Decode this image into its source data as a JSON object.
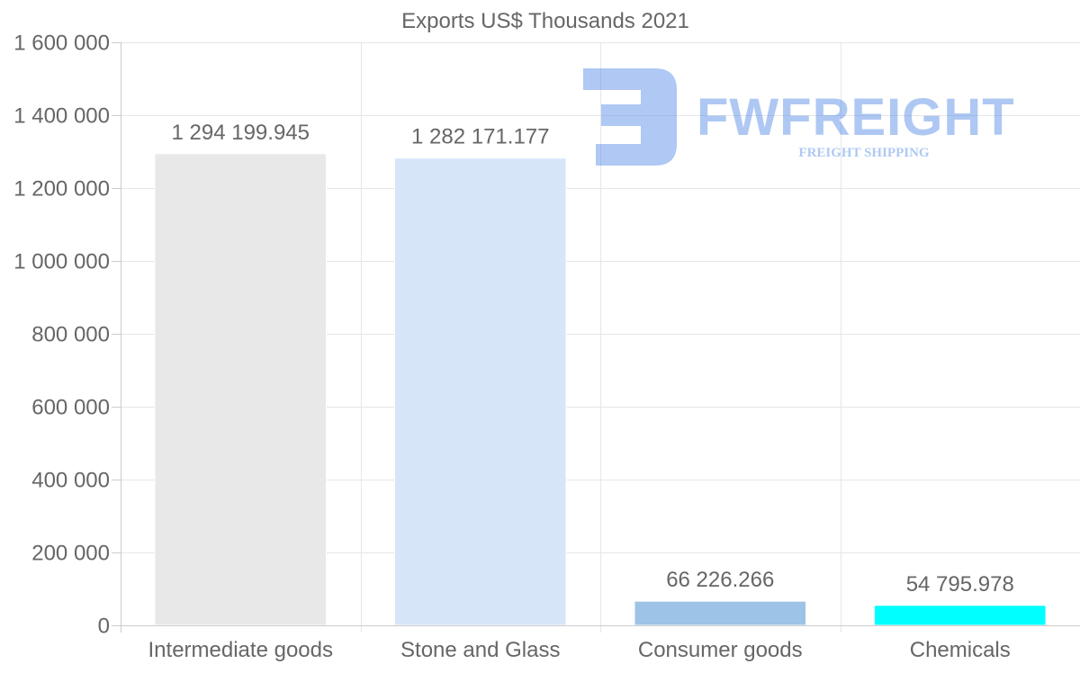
{
  "chart_data": {
    "type": "bar",
    "title": "Exports US$ Thousands 2021",
    "xlabel": "",
    "ylabel": "",
    "categories": [
      "Intermediate goods",
      "Stone and Glass",
      "Consumer goods",
      "Chemicals"
    ],
    "values": [
      1294199.945,
      1282171.177,
      66226.266,
      54795.978
    ],
    "value_labels": [
      "1 294 199.945",
      "1 282 171.177",
      "66 226.266",
      "54 795.978"
    ],
    "colors": [
      "#e8e8e8",
      "#d6e6f8",
      "#9dc3e6",
      "#00ffff"
    ],
    "ylim": [
      0,
      1600000
    ],
    "yticks": [
      0,
      200000,
      400000,
      600000,
      800000,
      1000000,
      1200000,
      1400000,
      1600000
    ],
    "ytick_labels": [
      "0",
      "200 000",
      "400 000",
      "600 000",
      "800 000",
      "1 000 000",
      "1 200 000",
      "1 400 000",
      "1 600 000"
    ],
    "grid": true,
    "legend": "none"
  },
  "watermark": {
    "brand": "FWFREIGHT",
    "tagline": "FREIGHT SHIPPING",
    "color": "#4d86e6"
  },
  "colors": {
    "text": "#666666",
    "grid": "#e6e6e6",
    "axis": "#cccccc"
  }
}
